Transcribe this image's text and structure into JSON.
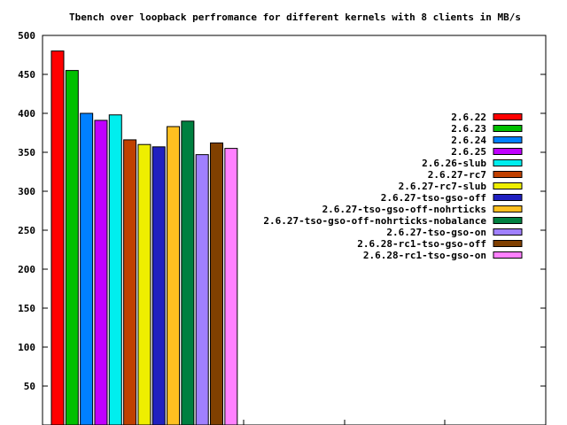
{
  "chart_data": {
    "type": "bar",
    "title": "Tbench over loopback perfromance for different kernels with 8 clients in MB/s",
    "xlabel": "",
    "ylabel": "",
    "ylim": [
      0,
      500
    ],
    "yticks": [
      50,
      100,
      150,
      200,
      250,
      300,
      350,
      400,
      450,
      500
    ],
    "grid": false,
    "legend_position": "right",
    "series": [
      {
        "name": "2.6.22",
        "value": 480,
        "color": "#ff0000"
      },
      {
        "name": "2.6.23",
        "value": 455,
        "color": "#00c000"
      },
      {
        "name": "2.6.24",
        "value": 400,
        "color": "#0080ff"
      },
      {
        "name": "2.6.25",
        "value": 391,
        "color": "#c000ff"
      },
      {
        "name": "2.6.26-slub",
        "value": 398,
        "color": "#00eeee"
      },
      {
        "name": "2.6.27-rc7",
        "value": 366,
        "color": "#c04000"
      },
      {
        "name": "2.6.27-rc7-slub",
        "value": 360,
        "color": "#eeee00"
      },
      {
        "name": "2.6.27-tso-gso-off",
        "value": 357,
        "color": "#2020c0"
      },
      {
        "name": "2.6.27-tso-gso-off-nohrticks",
        "value": 383,
        "color": "#ffc020"
      },
      {
        "name": "2.6.27-tso-gso-off-nohrticks-nobalance",
        "value": 390,
        "color": "#008040"
      },
      {
        "name": "2.6.27-tso-gso-on",
        "value": 347,
        "color": "#a080ff"
      },
      {
        "name": "2.6.28-rc1-tso-gso-off",
        "value": 362,
        "color": "#804000"
      },
      {
        "name": "2.6.28-rc1-tso-gso-on",
        "value": 355,
        "color": "#ff80ff"
      }
    ]
  }
}
